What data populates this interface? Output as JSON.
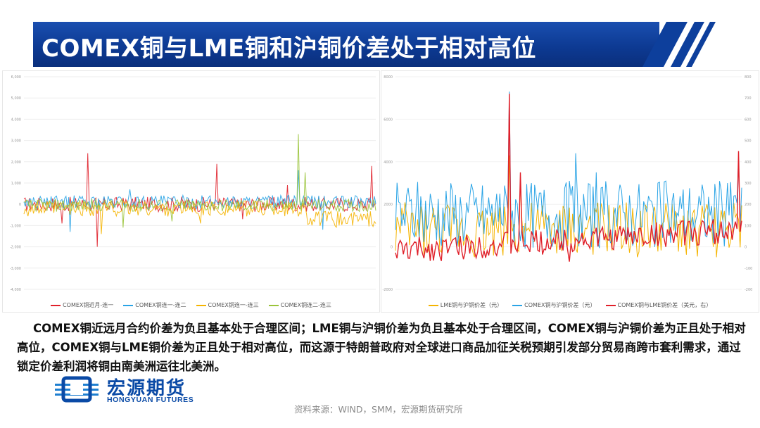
{
  "title": "COMEX铜与LME铜和沪铜价差处于相对高位",
  "body_text": "    COMEX铜近远月合约价差为负且基本处于合理区间；LME铜与沪铜价差为负且基本处于合理区间，COMEX铜与沪铜价差为正且处于相对高位，COMEX铜与LME铜价差为正且处于相对高位，而这源于特朗普政府对全球进口商品加征关税预期引发部分贸易商跨市套利需求，通过锁定价差利润将铜由南美洲运往北美洲。",
  "logo": {
    "cn": "宏源期货",
    "en": "HONGYUAN FUTURES"
  },
  "source": "资料来源：WIND，SMM，宏源期货研究所",
  "colors": {
    "title_bg": "#0d3a93",
    "red": "#e0202a",
    "blue": "#2aa4e6",
    "orange": "#f5b400",
    "green": "#9ac43a"
  },
  "chart_data": [
    {
      "type": "line",
      "ylim": [
        -4000,
        6000
      ],
      "yticks": [
        "6,000",
        "5,000",
        "4,000",
        "3,000",
        "2,000",
        "1,000",
        "0",
        "-1,000",
        "-2,000",
        "-3,000",
        "-4,000"
      ],
      "series": [
        {
          "name": "COMEX铜近月-连一",
          "color": "#e0202a",
          "spikes": [
            [
              0.18,
              2400
            ],
            [
              0.21,
              -2000
            ],
            [
              0.11,
              -900
            ],
            [
              0.55,
              1900
            ],
            [
              0.62,
              -700
            ],
            [
              0.75,
              900
            ],
            [
              0.99,
              1800
            ]
          ]
        },
        {
          "name": "COMEX铜连一-连二",
          "color": "#2aa4e6",
          "spikes": [
            [
              0.13,
              -1300
            ],
            [
              0.3,
              700
            ],
            [
              0.78,
              1600
            ],
            [
              0.85,
              -1200
            ]
          ]
        },
        {
          "name": "COMEX铜连一-连三",
          "color": "#f5b400",
          "spikes": [
            [
              0.22,
              -1400
            ],
            [
              0.5,
              -900
            ],
            [
              0.92,
              -900
            ]
          ]
        },
        {
          "name": "COMEX铜连二-连三",
          "color": "#9ac43a",
          "spikes": [
            [
              0.28,
              -1100
            ],
            [
              0.78,
              3300
            ],
            [
              0.8,
              1500
            ],
            [
              0.42,
              -800
            ]
          ]
        }
      ]
    },
    {
      "type": "line",
      "ylim_left": [
        -2000,
        8000
      ],
      "ylim_right": [
        -200,
        800
      ],
      "yticks_left": [
        "8000",
        "6000",
        "4000",
        "2000",
        "0",
        "-2000"
      ],
      "yticks_right": [
        "800",
        "700",
        "600",
        "500",
        "400",
        "300",
        "200",
        "100",
        "0",
        "-100",
        "-200"
      ],
      "series": [
        {
          "name": "LME铜与沪铜价差（元）",
          "color": "#f5b400",
          "axis": "left",
          "spikes": [
            [
              0.33,
              4300
            ],
            [
              0.36,
              3200
            ],
            [
              0.48,
              -200
            ],
            [
              0.85,
              -100
            ]
          ]
        },
        {
          "name": "COMEX铜与沪铜价差（元）",
          "color": "#2aa4e6",
          "axis": "left",
          "spikes": [
            [
              0.33,
              7300
            ],
            [
              0.3,
              2500
            ],
            [
              0.52,
              4400
            ],
            [
              0.58,
              3500
            ],
            [
              0.76,
              3000
            ],
            [
              0.96,
              3000
            ],
            [
              0.99,
              4200
            ]
          ]
        },
        {
          "name": "COMEX铜与LME铜价差（美元，右）",
          "color": "#e0202a",
          "axis": "right",
          "spikes": [
            [
              0.33,
              720
            ],
            [
              0.36,
              350
            ],
            [
              0.15,
              -30
            ],
            [
              0.5,
              -70
            ],
            [
              0.85,
              120
            ],
            [
              0.99,
              450
            ]
          ]
        }
      ]
    }
  ]
}
